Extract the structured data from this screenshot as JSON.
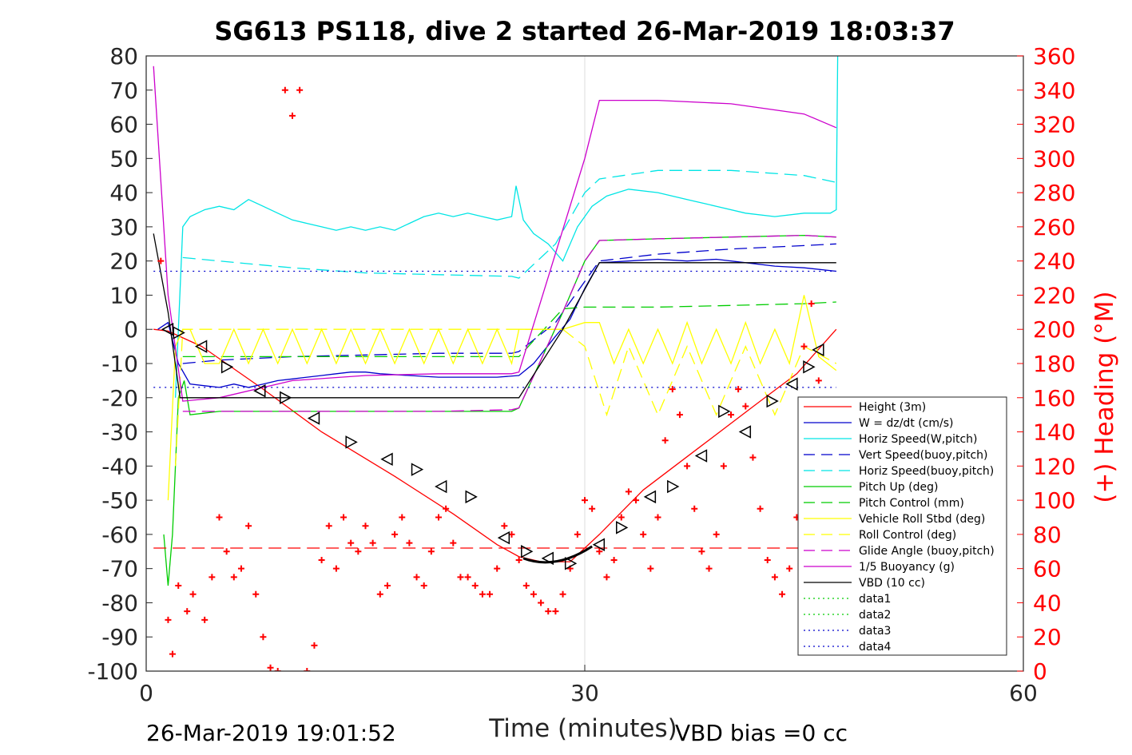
{
  "chart_data": {
    "type": "line",
    "title": "SG613 PS118, dive 2 started 26-Mar-2019 18:03:37",
    "xlabel": "Time (minutes)",
    "ylabel_right": "(+) Heading (°M)",
    "xlim": [
      0,
      60
    ],
    "ylim": [
      -100,
      80
    ],
    "ylim_right": [
      0,
      360
    ],
    "x_ticks": [
      "0",
      "30",
      "60"
    ],
    "y_ticks": [
      "80",
      "70",
      "60",
      "50",
      "40",
      "30",
      "20",
      "10",
      "0",
      "-10",
      "-20",
      "-30",
      "-40",
      "-50",
      "-60",
      "-70",
      "-80",
      "-90",
      "-100"
    ],
    "y_ticks_right": [
      "360",
      "340",
      "320",
      "300",
      "280",
      "260",
      "240",
      "220",
      "200",
      "180",
      "160",
      "140",
      "120",
      "100",
      "80",
      "60",
      "40",
      "20",
      "0"
    ],
    "grid": "vertical at x=30",
    "legend_position": "lower-right",
    "footer_left": "26-Mar-2019 19:01:52",
    "footer_right": "VBD bias =0 cc",
    "colors": {
      "height": "#ff0000",
      "w": "#0000cc",
      "horiz_speed": "#00e5e5",
      "pitch": "#00cc00",
      "roll": "#ffff00",
      "glide": "#cc00cc",
      "buoyancy": "#cc00cc",
      "vbd": "#000000",
      "heading": "#ff0000"
    },
    "series": [
      {
        "name": "Height (3m)",
        "color": "#ff0000",
        "dash": "solid",
        "x": [
          0.5,
          1.5,
          3.8,
          8,
          12,
          17,
          21,
          24,
          25.5,
          27,
          29,
          31,
          34,
          38,
          42,
          44.5,
          47.2
        ],
        "y": [
          0,
          -0.5,
          -5,
          -17.5,
          -30,
          -43,
          -54,
          -63,
          -66.5,
          -68,
          -68,
          -60,
          -47,
          -34,
          -21,
          -13,
          0
        ]
      },
      {
        "name": "W = dz/dt (cm/s)",
        "color": "#0000cc",
        "dash": "solid",
        "x": [
          0.8,
          1.5,
          2.2,
          3,
          4,
          5,
          6,
          7,
          8,
          9,
          10,
          11,
          12,
          13,
          14,
          15,
          16,
          18,
          20,
          22,
          24,
          25.5,
          26.5,
          28,
          29,
          30,
          31,
          33,
          35,
          37,
          39,
          41,
          43,
          45,
          47.2
        ],
        "y": [
          0,
          2,
          -10,
          -16,
          -16.5,
          -17,
          -16,
          -17,
          -16,
          -15,
          -14.5,
          -14,
          -13.5,
          -13,
          -12.5,
          -12.5,
          -13,
          -13.5,
          -14,
          -14,
          -14,
          -13.5,
          -10,
          -2,
          3,
          12,
          19.5,
          20,
          20.5,
          20,
          20.5,
          19.5,
          18.5,
          18,
          17
        ]
      },
      {
        "name": "Horiz Speed(W,pitch)",
        "color": "#00e5e5",
        "dash": "solid",
        "x": [
          2,
          2.5,
          3,
          4,
          5,
          6,
          7,
          8,
          9,
          10,
          11,
          12,
          13,
          14,
          15,
          16,
          17,
          18,
          19,
          20,
          21,
          22,
          23,
          24,
          25,
          25.3,
          25.8,
          26.5,
          27.5,
          28.5,
          29.5,
          30.5,
          31.5,
          33,
          35,
          37,
          39,
          41,
          43,
          45,
          46.8,
          47.2,
          47.3
        ],
        "y": [
          -20,
          30,
          33,
          35,
          36,
          35,
          38,
          36,
          34,
          32,
          31,
          30,
          29,
          30,
          29,
          30,
          29,
          31,
          33,
          34,
          33,
          34,
          33,
          32,
          33,
          42,
          32,
          28,
          25,
          20,
          30,
          36,
          39,
          41,
          40,
          38,
          36,
          34,
          33,
          34,
          34,
          35,
          80
        ]
      },
      {
        "name": "Vert Speed(buoy,pitch)",
        "color": "#0000cc",
        "dash": "longdash",
        "x": [
          2.5,
          5,
          10,
          15,
          20,
          25,
          25.5,
          28,
          30,
          31,
          35,
          40,
          45,
          47.2
        ],
        "y": [
          -10,
          -9,
          -8,
          -7.5,
          -7,
          -7,
          -6.5,
          2,
          14,
          20,
          22,
          23.5,
          24.5,
          25
        ]
      },
      {
        "name": "Horiz Speed(buoy,pitch)",
        "color": "#00e5e5",
        "dash": "longdash",
        "x": [
          2.5,
          5,
          10,
          15,
          20,
          25,
          25.5,
          28,
          30,
          31,
          35,
          40,
          45,
          47.2
        ],
        "y": [
          21,
          20,
          18,
          16.5,
          16,
          15.5,
          15,
          25,
          40,
          44,
          46.5,
          46.5,
          45,
          43
        ]
      },
      {
        "name": "Pitch Up (deg)",
        "color": "#00cc00",
        "dash": "solid",
        "x": [
          1.2,
          1.5,
          1.8,
          2.2,
          2.6,
          3,
          5,
          10,
          15,
          20,
          25,
          25.5,
          28.5,
          30,
          31,
          35,
          40,
          45,
          47.2
        ],
        "y": [
          -60,
          -75,
          -60,
          -20,
          -15,
          -25,
          -24,
          -24,
          -24,
          -24,
          -24,
          -23,
          5,
          20,
          26,
          26.5,
          27,
          27.5,
          27
        ]
      },
      {
        "name": "Pitch Control (mm)",
        "color": "#00cc00",
        "dash": "longdash",
        "x": [
          2.5,
          10,
          20,
          25.5,
          28.5,
          30,
          35,
          40,
          45,
          47.2
        ],
        "y": [
          -8,
          -8,
          -8,
          -8,
          6,
          6.5,
          6.5,
          7,
          7.5,
          8
        ]
      },
      {
        "name": "Vehicle Roll Stbd (deg)",
        "color": "#ffff00",
        "dash": "solid",
        "x": [
          1.5,
          2,
          2.5,
          3,
          4,
          5,
          6,
          7,
          8,
          9,
          10,
          11,
          12,
          13,
          14,
          15,
          16,
          17,
          18,
          19,
          20,
          21,
          22,
          23,
          24,
          25,
          25.5,
          28.5,
          30,
          31,
          32,
          33,
          34,
          35,
          36,
          37,
          38,
          39,
          40,
          41,
          42,
          43,
          44,
          45,
          46,
          47.2
        ],
        "y": [
          -50,
          -5,
          0,
          0,
          -10,
          -10,
          0,
          -10,
          0,
          -10,
          0,
          -10,
          0,
          -10,
          0,
          -10,
          0,
          -10,
          0,
          -10,
          0,
          -10,
          0,
          -10,
          0,
          -10,
          0,
          0,
          2,
          2,
          -10,
          0,
          -10,
          0,
          -10,
          2,
          -10,
          0,
          -10,
          2,
          -10,
          0,
          -10,
          10,
          -8,
          -12
        ]
      },
      {
        "name": "Roll Control (deg)",
        "color": "#ffff00",
        "dash": "longdash",
        "x": [
          2,
          2.5,
          10,
          20,
          25.5,
          28.5,
          30,
          31.5,
          33,
          35,
          37,
          39,
          41,
          43,
          45,
          47.2
        ],
        "y": [
          -40,
          0,
          0,
          0,
          0,
          0,
          -5,
          -25,
          -5,
          -25,
          -5,
          -25,
          -5,
          -25,
          -5,
          -10
        ]
      },
      {
        "name": "Glide Angle (buoy,pitch)",
        "color": "#cc00cc",
        "dash": "longdash",
        "x": [
          2.5,
          5,
          10,
          15,
          20,
          25,
          25.5,
          28.5,
          30,
          31,
          35,
          40,
          45,
          47.2
        ],
        "y": [
          -24,
          -24,
          -24,
          -24,
          -24,
          -23.5,
          -23,
          5,
          20,
          26,
          26.5,
          27,
          27.5,
          27
        ]
      },
      {
        "name": "1/5 Buoyancy (g)",
        "color": "#cc00cc",
        "dash": "solid",
        "x": [
          0.5,
          1.5,
          2.5,
          5,
          10,
          15,
          20,
          25,
          25.5,
          30,
          31,
          35,
          40,
          45,
          47.2
        ],
        "y": [
          77,
          10,
          -21,
          -20,
          -15,
          -13.5,
          -13,
          -13,
          -12.5,
          50,
          67,
          67,
          66,
          63,
          59
        ]
      },
      {
        "name": "VBD (10 cc)",
        "color": "#000000",
        "dash": "solid",
        "x": [
          0.5,
          1.5,
          2.3,
          2.3,
          10,
          25.5,
          28.5,
          31,
          47.2
        ],
        "y": [
          28,
          5,
          -19.5,
          -20,
          -20,
          -20,
          0,
          19.5,
          19.5
        ]
      },
      {
        "name": "data1",
        "color": "#00cc00",
        "dash": "dotted",
        "x": [],
        "y": []
      },
      {
        "name": "data2",
        "color": "#00cc00",
        "dash": "dotted",
        "x": [],
        "y": []
      },
      {
        "name": "data3",
        "color": "#0000cc",
        "dash": "dotted",
        "x": [
          0.5,
          47.2
        ],
        "y": [
          17,
          17
        ]
      },
      {
        "name": "data4",
        "color": "#0000cc",
        "dash": "dotted",
        "x": [
          0.5,
          47.2
        ],
        "y": [
          -17,
          -17
        ]
      }
    ],
    "heading_reference": {
      "color": "#ff0000",
      "dash": "longdash",
      "x": [
        0.5,
        47.2
      ],
      "y_right": [
        72,
        72
      ]
    },
    "heading": {
      "color": "#ff0000",
      "marker": "+",
      "axis": "right",
      "x": [
        1,
        1.5,
        1.8,
        2.2,
        2.8,
        3.2,
        4,
        4.5,
        5,
        5.5,
        6,
        6.5,
        7,
        7.5,
        8,
        8.5,
        9,
        9.5,
        10,
        10.5,
        11,
        11.5,
        12,
        12.5,
        13,
        13.5,
        14,
        14.5,
        15,
        15.5,
        16,
        16.5,
        17,
        17.5,
        18,
        18.5,
        19,
        19.5,
        20,
        20.5,
        21,
        21.5,
        22,
        22.5,
        23,
        23.5,
        24,
        24.5,
        25,
        25.5,
        26,
        26.5,
        27,
        27.5,
        28,
        28.5,
        29,
        29.5,
        30,
        30.5,
        31,
        31.5,
        32,
        32.5,
        33,
        33.5,
        34,
        34.5,
        35,
        35.5,
        36,
        36.5,
        37,
        37.5,
        38,
        38.5,
        39,
        39.5,
        40,
        40.5,
        41,
        41.5,
        42,
        42.5,
        43,
        43.5,
        44,
        44.5,
        45,
        45.5,
        46,
        46.5
      ],
      "y": [
        240,
        30,
        10,
        50,
        35,
        45,
        30,
        55,
        90,
        70,
        55,
        60,
        85,
        45,
        20,
        2,
        0,
        340,
        325,
        340,
        0,
        15,
        65,
        85,
        60,
        90,
        75,
        70,
        85,
        75,
        45,
        50,
        80,
        90,
        75,
        55,
        50,
        70,
        90,
        95,
        75,
        55,
        55,
        50,
        45,
        45,
        60,
        85,
        80,
        65,
        50,
        45,
        40,
        35,
        35,
        45,
        60,
        80,
        100,
        95,
        70,
        55,
        65,
        90,
        105,
        100,
        80,
        60,
        90,
        135,
        165,
        150,
        120,
        95,
        70,
        60,
        80,
        120,
        150,
        165,
        155,
        125,
        95,
        65,
        55,
        45,
        60,
        90,
        190,
        215,
        170,
        150
      ]
    },
    "markers": {
      "shape": "triangle",
      "color": "#000000",
      "x": [
        1.5,
        2.2,
        3.8,
        5.5,
        7.8,
        9.5,
        11.5,
        14,
        16.5,
        18.5,
        20.2,
        22.2,
        24.5,
        26,
        27.5,
        29,
        31,
        32.5,
        34.5,
        36,
        38,
        39.5,
        41,
        42.8,
        44.2,
        45.3,
        46
      ],
      "y": [
        0,
        -1,
        -5,
        -11,
        -18,
        -20,
        -26,
        -33,
        -38,
        -41,
        -46,
        -49,
        -61,
        -65,
        -67,
        -68.5,
        -63,
        -58,
        -49,
        -46,
        -37,
        -24,
        -30,
        -21,
        -16,
        -11,
        -6
      ]
    }
  }
}
